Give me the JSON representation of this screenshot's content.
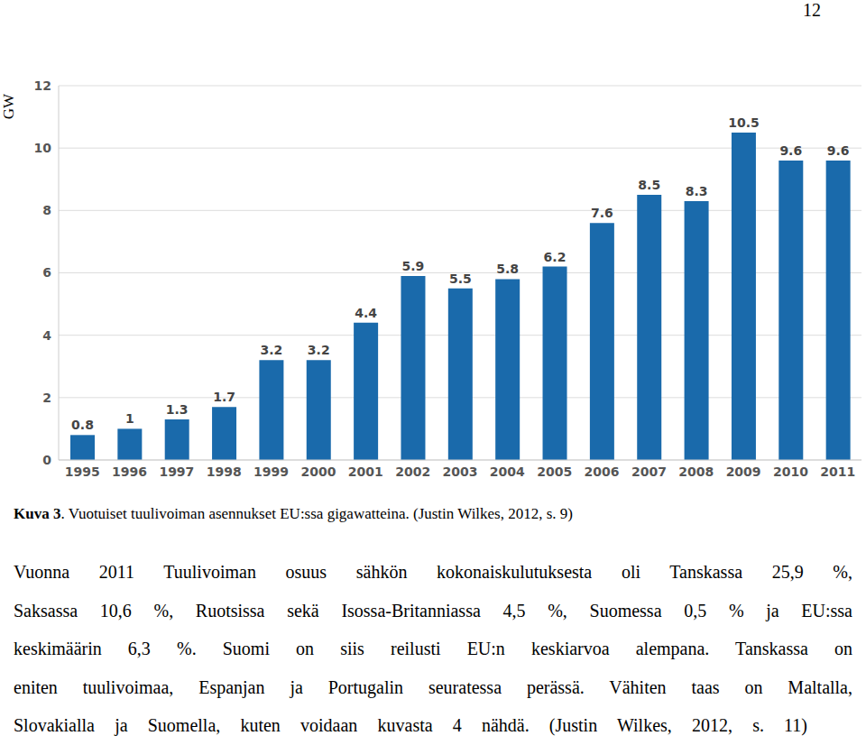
{
  "page_number": "12",
  "chart_data": {
    "type": "bar",
    "y_label": "GW",
    "categories": [
      "1995",
      "1996",
      "1997",
      "1998",
      "1999",
      "2000",
      "2001",
      "2002",
      "2003",
      "2004",
      "2005",
      "2006",
      "2007",
      "2008",
      "2009",
      "2010",
      "2011"
    ],
    "values": [
      0.8,
      1,
      1.3,
      1.7,
      3.2,
      3.2,
      4.4,
      5.9,
      5.5,
      5.8,
      6.2,
      7.6,
      8.5,
      8.3,
      10.5,
      9.6,
      9.6
    ],
    "color": "#1a6aab",
    "ylim": [
      0,
      12
    ],
    "yticks": [
      0,
      2,
      4,
      6,
      8,
      10,
      12
    ],
    "grid": true,
    "data_labels": true
  },
  "caption": {
    "label": "Kuva 3",
    "text": ". Vuotuiset tuulivoiman asennukset EU:ssa gigawatteina. (Justin Wilkes, 2012, s. 9)"
  },
  "paragraph": [
    "Vuonna 2011 Tuulivoiman osuus sähkön kokonaiskulutuksesta oli Tanskassa 25,9 %,",
    "Saksassa 10,6 %, Ruotsissa sekä Isossa-Britanniassa 4,5 %, Suomessa 0,5 % ja EU:ssa",
    "keskimäärin 6,3 %. Suomi on siis reilusti EU:n keskiarvoa alempana. Tanskassa on",
    "eniten tuulivoimaa, Espanjan ja Portugalin seuratessa perässä. Vähiten taas on Maltalla,",
    "Slovakialla ja Suomella, kuten voidaan kuvasta 4 nähdä. (Justin Wilkes, 2012, s. 11)"
  ]
}
